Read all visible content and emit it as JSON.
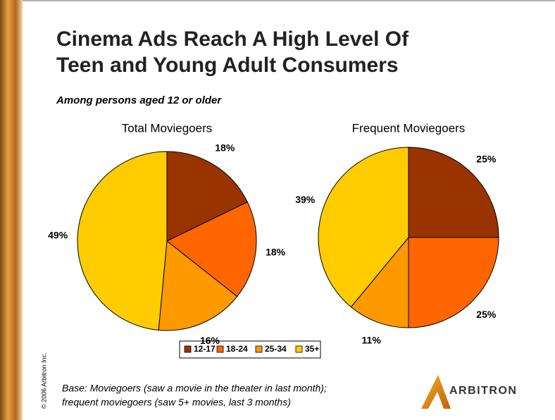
{
  "title": [
    "Cinema Ads Reach A High Level Of",
    "Teen and Young Adult Consumers"
  ],
  "subtitle": "Among persons aged 12 or older",
  "note": [
    "Base:  Moviegoers (saw a movie in the theater in last month);",
    "frequent moviegoers (saw 5+ movies, last 3 months)"
  ],
  "copyright": "© 2006 Arbitron Inc.",
  "logo": "ARBITRON",
  "chart_data": [
    {
      "type": "pie",
      "title": "Total Moviegoers",
      "categories": [
        "12-17",
        "18-24",
        "25-34",
        "35+"
      ],
      "values": [
        18,
        18,
        16,
        49
      ],
      "value_labels": [
        "18%",
        "18%",
        "16%",
        "49%"
      ],
      "colors": [
        "#993300",
        "#ff6600",
        "#ff9900",
        "#ffcc00"
      ]
    },
    {
      "type": "pie",
      "title": "Frequent Moviegoers",
      "categories": [
        "12-17",
        "18-24",
        "25-34",
        "35+"
      ],
      "values": [
        25,
        25,
        11,
        39
      ],
      "value_labels": [
        "25%",
        "25%",
        "11%",
        "39%"
      ],
      "colors": [
        "#993300",
        "#ff6600",
        "#ff9900",
        "#ffcc00"
      ]
    }
  ]
}
